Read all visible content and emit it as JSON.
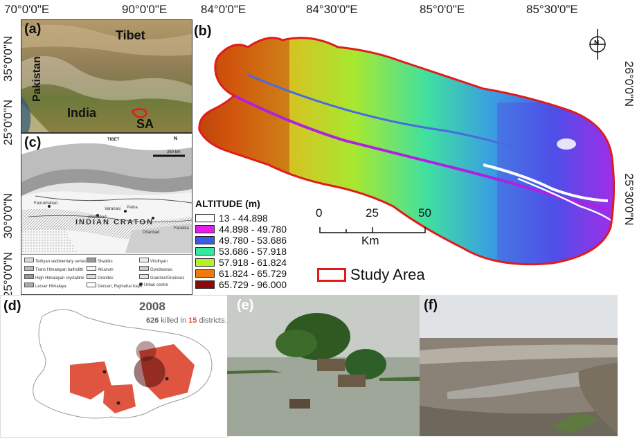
{
  "top_coords": [
    "70°0'0\"E",
    "90°0'0\"E",
    "84°0'0\"E",
    "84°30'0\"E",
    "85°0'0\"E",
    "85°30'0\"E"
  ],
  "left_coords_a": [
    "35°0'0\"N",
    "25°0'0\"N"
  ],
  "left_coords_c": [
    "30°0'0\"N",
    "25°0'0\"N"
  ],
  "right_coords": [
    "26°0'0\"N",
    "25°30'0\"N"
  ],
  "panels": {
    "a": "(a)",
    "b": "(b)",
    "c": "(c)",
    "d": "(d)",
    "e": "(e)",
    "f": "(f)"
  },
  "panel_a": {
    "tibet": "Tibet",
    "pakistan": "Pakistan",
    "india": "India",
    "sa": "SA"
  },
  "panel_c": {
    "tibet": "TIBET",
    "craton": "INDIAN CRATON",
    "north": "N",
    "scale": "250 km",
    "legend": [
      "Tethyan sedimentary series",
      "Siwaliks",
      "Vindhyan",
      "Trans Himalayan batholith",
      "Alluvium",
      "Gondwanas",
      "High Himalayan crystalline",
      "Granites",
      "Granites/Gneisses",
      "Lesser Himalaya",
      "Deccan, Rajmahal traps",
      "Urban centre"
    ],
    "places": [
      "Farrukhabad",
      "Allahabad",
      "Patna",
      "Dhanbad",
      "Farakka",
      "Varanasi"
    ]
  },
  "panel_b": {
    "north": "N",
    "scale_ticks": [
      "0",
      "25",
      "50"
    ],
    "scale_unit": "Km",
    "study_area": "Study Area"
  },
  "legend": {
    "title": "ALTITUDE (m)",
    "classes": [
      {
        "label": "13 - 44.898",
        "color": "#ffffff"
      },
      {
        "label": "44.898 - 49.780",
        "color": "#e020e8"
      },
      {
        "label": "49.780 - 53.686",
        "color": "#3a5be8"
      },
      {
        "label": "53.686 - 57.918",
        "color": "#33e8a0"
      },
      {
        "label": "57.918 - 61.824",
        "color": "#b8f028"
      },
      {
        "label": "61.824 - 65.729",
        "color": "#f07a10"
      },
      {
        "label": "65.729 - 96.000",
        "color": "#8a0a0a"
      }
    ]
  },
  "panel_d": {
    "year": "2008",
    "killed_count": "626",
    "killed_text": "killed in",
    "district_count": "15",
    "district_text": "districts."
  },
  "colors": {
    "study_boundary": "#e11b1b",
    "flood_red": "#e05540"
  }
}
